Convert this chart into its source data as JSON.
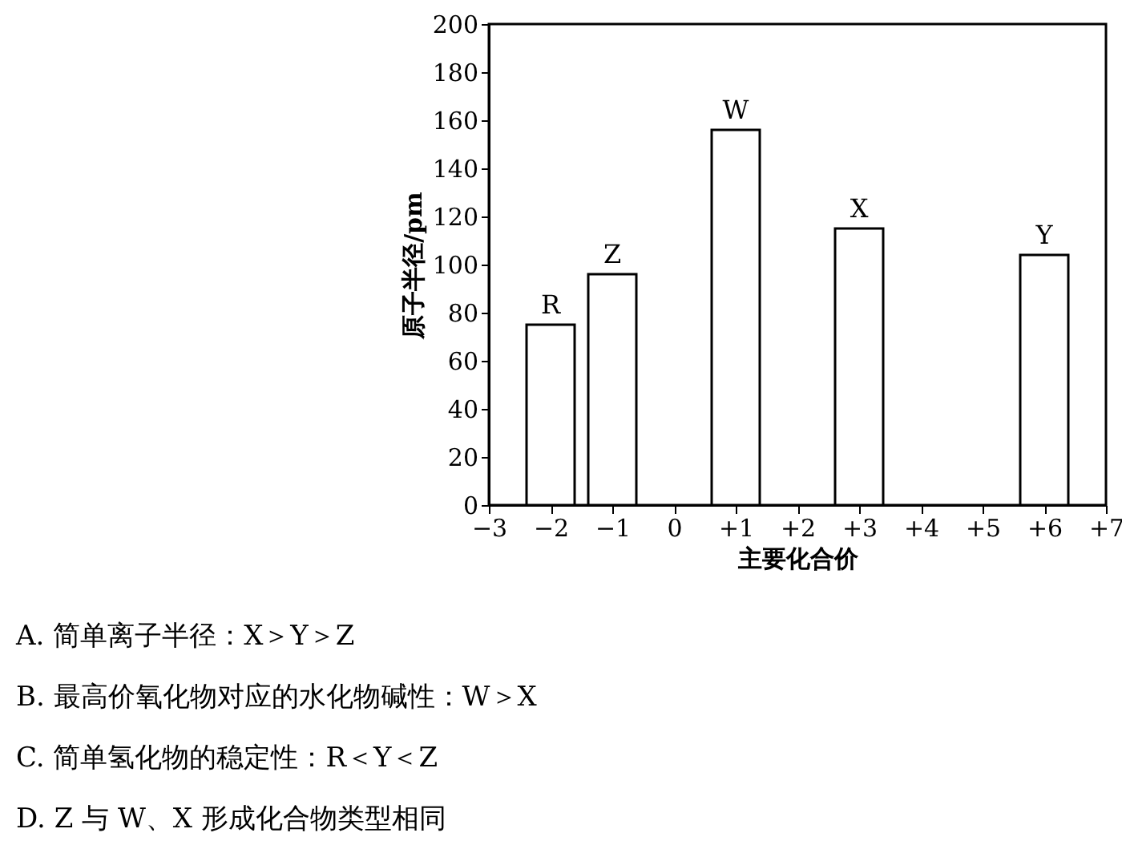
{
  "chart_data": {
    "type": "bar",
    "xlabel": "主要化合价",
    "ylabel": "原子半径/pm",
    "x": [
      -2,
      -1,
      1,
      3,
      6
    ],
    "values": [
      75,
      96,
      156,
      115,
      104
    ],
    "color": "#ffffff",
    "xlim": [
      -3,
      7
    ],
    "xticks": [
      {
        "value": -3,
        "label": "−3"
      },
      {
        "value": -2,
        "label": "−2"
      },
      {
        "value": -1,
        "label": "−1"
      },
      0,
      {
        "value": 1,
        "label": "+1"
      },
      {
        "value": 2,
        "label": "+2"
      },
      {
        "value": 3,
        "label": "+3"
      },
      {
        "value": 4,
        "label": "+4"
      },
      {
        "value": 5,
        "label": "+5"
      },
      {
        "value": 6,
        "label": "+6"
      },
      {
        "value": 7,
        "label": "+7"
      }
    ],
    "ylim": [
      0,
      200
    ],
    "yticks": [
      0,
      20,
      40,
      60,
      80,
      100,
      120,
      140,
      160,
      180,
      200
    ],
    "grid": false,
    "annotations": [
      {
        "text": "R",
        "x": -2,
        "y": 75
      },
      {
        "text": "Z",
        "x": -1,
        "y": 96
      },
      {
        "text": "W",
        "x": 1,
        "y": 156
      },
      {
        "text": "X",
        "x": 3,
        "y": 115
      },
      {
        "text": "Y",
        "x": 6,
        "y": 104
      },
      "A. 简单离子半径：X＞Y＞Z",
      "B. 最高价氧化物对应的水化物碱性：W＞X",
      "C. 简单氢化物的稳定性：R＜Y＜Z",
      "D. Z 与 W、X 形成化合物类型相同"
    ]
  }
}
